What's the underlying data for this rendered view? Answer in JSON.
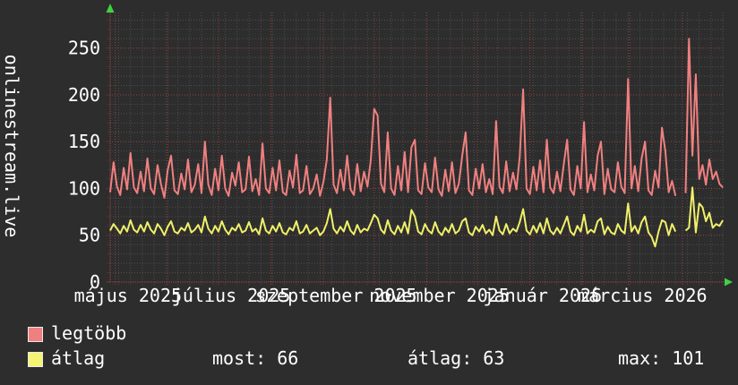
{
  "chart_data": {
    "type": "line",
    "title": "onlinestream.live",
    "grid": true,
    "legend_position": "bottom-left",
    "x_axis": {
      "unit": "days",
      "span_days": 363,
      "minor_grid_step_days": 7,
      "months": [
        {
          "day": 3,
          "label": "május 2025"
        },
        {
          "day": 34,
          "label": ""
        },
        {
          "day": 64,
          "label": "július 2025"
        },
        {
          "day": 95,
          "label": ""
        },
        {
          "day": 126,
          "label": "szeptember 2025"
        },
        {
          "day": 156,
          "label": ""
        },
        {
          "day": 187,
          "label": "november 2025"
        },
        {
          "day": 217,
          "label": ""
        },
        {
          "day": 248,
          "label": "január 2026"
        },
        {
          "day": 279,
          "label": ""
        },
        {
          "day": 307,
          "label": "március 2026"
        },
        {
          "day": 338,
          "label": ""
        }
      ]
    },
    "y_axis": {
      "min": 0,
      "max": 288,
      "minor_step": 10,
      "major_step": 50,
      "tick_labels": [
        "0",
        "50",
        "100",
        "150",
        "200",
        "250"
      ]
    },
    "series": [
      {
        "name": "legtöbb",
        "color": "#f08080",
        "sample_step_days": 2,
        "values": [
          96,
          128,
          102,
          93,
          122,
          99,
          138,
          101,
          95,
          118,
          97,
          132,
          100,
          94,
          125,
          105,
          90,
          120,
          135,
          98,
          94,
          116,
          99,
          131,
          96,
          104,
          126,
          95,
          150,
          104,
          93,
          121,
          98,
          135,
          100,
          92,
          117,
          103,
          128,
          96,
          99,
          134,
          97,
          110,
          93,
          148,
          100,
          95,
          122,
          98,
          130,
          96,
          93,
          119,
          101,
          136,
          95,
          98,
          124,
          94,
          100,
          115,
          92,
          107,
          131,
          197,
          104,
          95,
          120,
          98,
          135,
          99,
          93,
          126,
          97,
          118,
          102,
          130,
          185,
          178,
          105,
          96,
          160,
          100,
          93,
          124,
          98,
          139,
          96,
          144,
          152,
          98,
          94,
          127,
          101,
          96,
          133,
          99,
          92,
          120,
          97,
          128,
          95,
          105,
          135,
          160,
          98,
          93,
          121,
          100,
          126,
          96,
          110,
          94,
          172,
          102,
          95,
          129,
          97,
          117,
          99,
          134,
          206,
          100,
          94,
          123,
          98,
          130,
          96,
          152,
          101,
          95,
          118,
          97,
          126,
          152,
          99,
          93,
          124,
          100,
          171,
          96,
          115,
          98,
          135,
          150,
          94,
          121,
          99,
          96,
          128,
          102,
          95,
          217,
          100,
          124,
          97,
          132,
          150,
          98,
          93,
          119,
          101,
          165,
          140,
          96,
          108,
          92,
          null,
          null,
          95,
          260,
          135,
          222,
          110,
          125,
          104,
          131,
          110,
          118,
          105,
          101
        ]
      },
      {
        "name": "átlag",
        "color": "#f0f06a",
        "sample_step_days": 2,
        "values": [
          55,
          62,
          57,
          52,
          60,
          54,
          66,
          56,
          53,
          61,
          54,
          64,
          56,
          52,
          62,
          57,
          50,
          59,
          65,
          54,
          52,
          58,
          55,
          63,
          53,
          56,
          61,
          53,
          70,
          57,
          52,
          60,
          54,
          65,
          56,
          51,
          58,
          55,
          62,
          53,
          55,
          64,
          54,
          57,
          51,
          68,
          55,
          52,
          60,
          54,
          63,
          53,
          51,
          58,
          55,
          65,
          52,
          54,
          61,
          52,
          55,
          58,
          50,
          54,
          63,
          78,
          57,
          52,
          59,
          54,
          65,
          55,
          51,
          61,
          53,
          57,
          55,
          63,
          72,
          68,
          56,
          52,
          66,
          55,
          51,
          60,
          53,
          64,
          52,
          77,
          70,
          54,
          51,
          62,
          55,
          52,
          64,
          54,
          50,
          58,
          53,
          62,
          52,
          55,
          65,
          68,
          53,
          50,
          59,
          54,
          61,
          52,
          56,
          50,
          70,
          55,
          51,
          62,
          52,
          57,
          54,
          64,
          78,
          55,
          51,
          60,
          53,
          63,
          52,
          68,
          55,
          51,
          58,
          52,
          61,
          70,
          54,
          50,
          60,
          54,
          72,
          52,
          56,
          53,
          65,
          68,
          51,
          59,
          53,
          51,
          62,
          55,
          52,
          84,
          54,
          60,
          52,
          64,
          70,
          53,
          48,
          38,
          54,
          66,
          64,
          50,
          62,
          54,
          null,
          null,
          55,
          58,
          101,
          53,
          84,
          80,
          65,
          74,
          58,
          62,
          60,
          66
        ]
      }
    ],
    "stats": {
      "most": 66,
      "atlag": 63,
      "max": 101
    }
  },
  "legend": {
    "entries": [
      {
        "label": "legtöbb",
        "color": "#f08080"
      },
      {
        "label": "átlag",
        "color": "#f5f573"
      }
    ],
    "stats": [
      "most: 66",
      "átlag: 63",
      "max: 101"
    ]
  },
  "colors": {
    "background": "#2d2d2d",
    "text": "#ffffff",
    "grid_minor": "#4e4e4e",
    "grid_major": "#9c4040",
    "axis": "#b04545",
    "arrow": "#3fd23f"
  }
}
